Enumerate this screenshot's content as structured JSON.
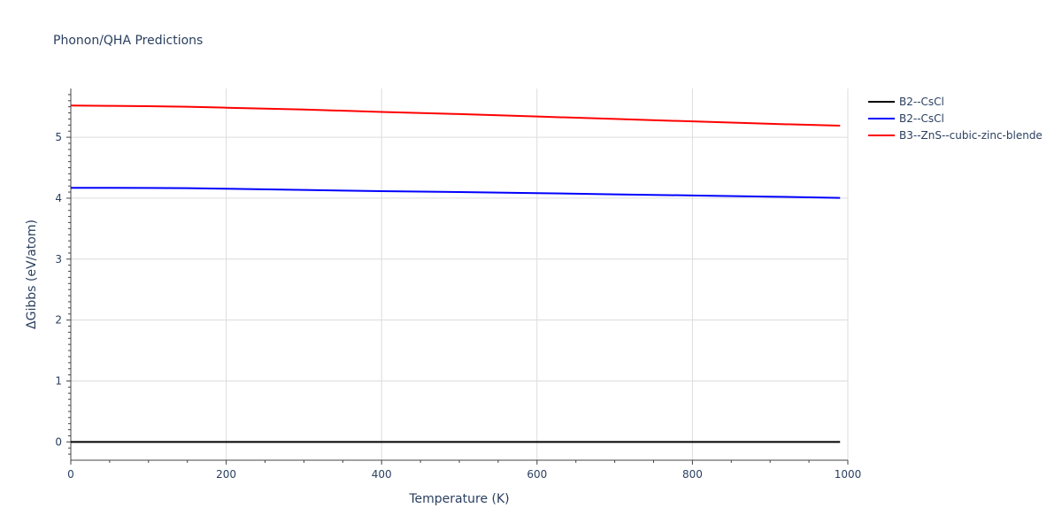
{
  "chart_data": {
    "type": "line",
    "title": "Phonon/QHA Predictions",
    "xlabel": "Temperature (K)",
    "ylabel": "ΔGibbs (eV/atom)",
    "xlim": [
      0,
      1000
    ],
    "ylim": [
      -0.3,
      5.8
    ],
    "xticks": [
      0,
      200,
      400,
      600,
      800,
      1000
    ],
    "yticks": [
      0,
      1,
      2,
      3,
      4,
      5
    ],
    "grid": true,
    "legend_position": "top-right",
    "series": [
      {
        "name": "B2--CsCl",
        "color": "#000000",
        "x": [
          0,
          100,
          200,
          300,
          400,
          500,
          600,
          700,
          800,
          900,
          990
        ],
        "y": [
          0,
          0,
          0,
          0,
          0,
          0,
          0,
          0,
          0,
          0,
          0
        ]
      },
      {
        "name": "B2--CsCl",
        "color": "#0000ff",
        "x": [
          0,
          50,
          100,
          150,
          200,
          300,
          400,
          500,
          600,
          700,
          800,
          900,
          990
        ],
        "y": [
          4.17,
          4.17,
          4.168,
          4.165,
          4.155,
          4.135,
          4.115,
          4.1,
          4.083,
          4.063,
          4.045,
          4.025,
          4.005
        ]
      },
      {
        "name": "B3--ZnS--cubic-zinc-blende",
        "color": "#ff0000",
        "x": [
          0,
          50,
          100,
          150,
          200,
          300,
          400,
          500,
          600,
          700,
          800,
          900,
          990
        ],
        "y": [
          5.52,
          5.515,
          5.51,
          5.5,
          5.485,
          5.455,
          5.415,
          5.38,
          5.34,
          5.3,
          5.26,
          5.22,
          5.19
        ]
      }
    ]
  }
}
